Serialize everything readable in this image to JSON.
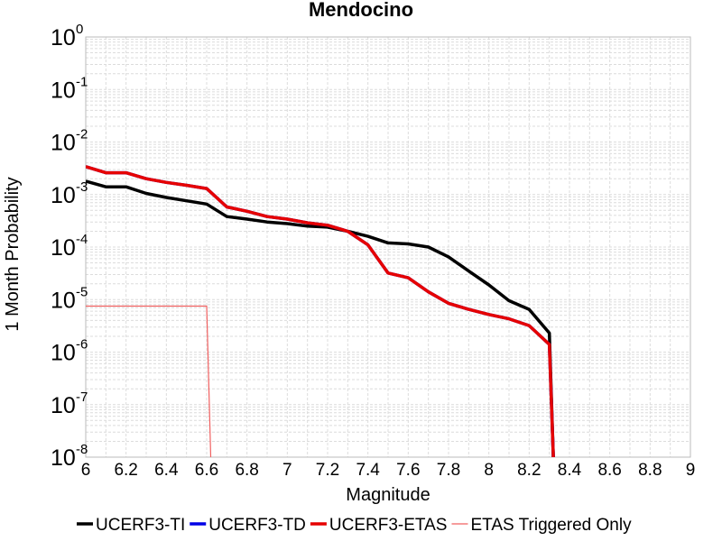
{
  "chart_data": {
    "type": "line",
    "title": "Mendocino",
    "xlabel": "Magnitude",
    "ylabel": "1 Month Probability",
    "xlim": [
      6,
      9
    ],
    "ylim": [
      1e-08,
      1
    ],
    "yscale": "log",
    "grid": true,
    "legend_position": "bottom",
    "x_ticks": [
      "6",
      "6.2",
      "6.4",
      "6.6",
      "6.8",
      "7",
      "7.2",
      "7.4",
      "7.6",
      "7.8",
      "8",
      "8.2",
      "8.4",
      "8.6",
      "8.8",
      "9"
    ],
    "y_ticks": [
      {
        "base": "10",
        "exp": "0"
      },
      {
        "base": "10",
        "exp": "-1"
      },
      {
        "base": "10",
        "exp": "-2"
      },
      {
        "base": "10",
        "exp": "-3"
      },
      {
        "base": "10",
        "exp": "-4"
      },
      {
        "base": "10",
        "exp": "-5"
      },
      {
        "base": "10",
        "exp": "-6"
      },
      {
        "base": "10",
        "exp": "-7"
      },
      {
        "base": "10",
        "exp": "-8"
      }
    ],
    "series": [
      {
        "name": "UCERF3-TI",
        "color": "#000000",
        "x": [
          6.0,
          6.1,
          6.2,
          6.3,
          6.4,
          6.5,
          6.6,
          6.7,
          6.8,
          6.9,
          7.0,
          7.1,
          7.2,
          7.3,
          7.4,
          7.5,
          7.6,
          7.7,
          7.8,
          7.9,
          8.0,
          8.1,
          8.2,
          8.3,
          8.32
        ],
        "y": [
          0.0018,
          0.0014,
          0.0014,
          0.00105,
          0.00088,
          0.00076,
          0.00066,
          0.00038,
          0.00034,
          0.0003,
          0.00028,
          0.00025,
          0.00024,
          0.0002,
          0.00016,
          0.00012,
          0.000115,
          0.0001,
          6.5e-05,
          3.5e-05,
          1.9e-05,
          9.5e-06,
          6.5e-06,
          2.3e-06,
          1e-08
        ]
      },
      {
        "name": "UCERF3-TD",
        "color": "#0000e6",
        "x": [
          6.0,
          6.1,
          6.2,
          6.3,
          6.4,
          6.5,
          6.6,
          6.7,
          6.8,
          6.9,
          7.0,
          7.1,
          7.2,
          7.3,
          7.4,
          7.5,
          7.6,
          7.7,
          7.8,
          7.9,
          8.0,
          8.1,
          8.2,
          8.3,
          8.32
        ],
        "y": [
          0.0034,
          0.0026,
          0.0026,
          0.002,
          0.0017,
          0.0015,
          0.0013,
          0.00058,
          0.00048,
          0.00038,
          0.00034,
          0.00029,
          0.00026,
          0.0002,
          0.00011,
          3.2e-05,
          2.6e-05,
          1.4e-05,
          8.5e-06,
          6.5e-06,
          5.2e-06,
          4.3e-06,
          3.2e-06,
          1.4e-06,
          1e-08
        ]
      },
      {
        "name": "UCERF3-ETAS",
        "color": "#e60000",
        "x": [
          6.0,
          6.1,
          6.2,
          6.3,
          6.4,
          6.5,
          6.6,
          6.7,
          6.8,
          6.9,
          7.0,
          7.1,
          7.2,
          7.3,
          7.4,
          7.5,
          7.6,
          7.7,
          7.8,
          7.9,
          8.0,
          8.1,
          8.2,
          8.3,
          8.32
        ],
        "y": [
          0.0034,
          0.0026,
          0.0026,
          0.002,
          0.0017,
          0.0015,
          0.0013,
          0.00058,
          0.00048,
          0.00038,
          0.00034,
          0.00029,
          0.00026,
          0.0002,
          0.00011,
          3.2e-05,
          2.6e-05,
          1.4e-05,
          8.5e-06,
          6.5e-06,
          5.2e-06,
          4.3e-06,
          3.2e-06,
          1.4e-06,
          1e-08
        ]
      },
      {
        "name": "ETAS Triggered Only",
        "color": "#f06060",
        "x": [
          6.0,
          6.1,
          6.2,
          6.3,
          6.4,
          6.5,
          6.6,
          6.62
        ],
        "y": [
          7.5e-06,
          7.5e-06,
          7.5e-06,
          7.5e-06,
          7.5e-06,
          7.5e-06,
          7.5e-06,
          1e-08
        ]
      }
    ]
  }
}
